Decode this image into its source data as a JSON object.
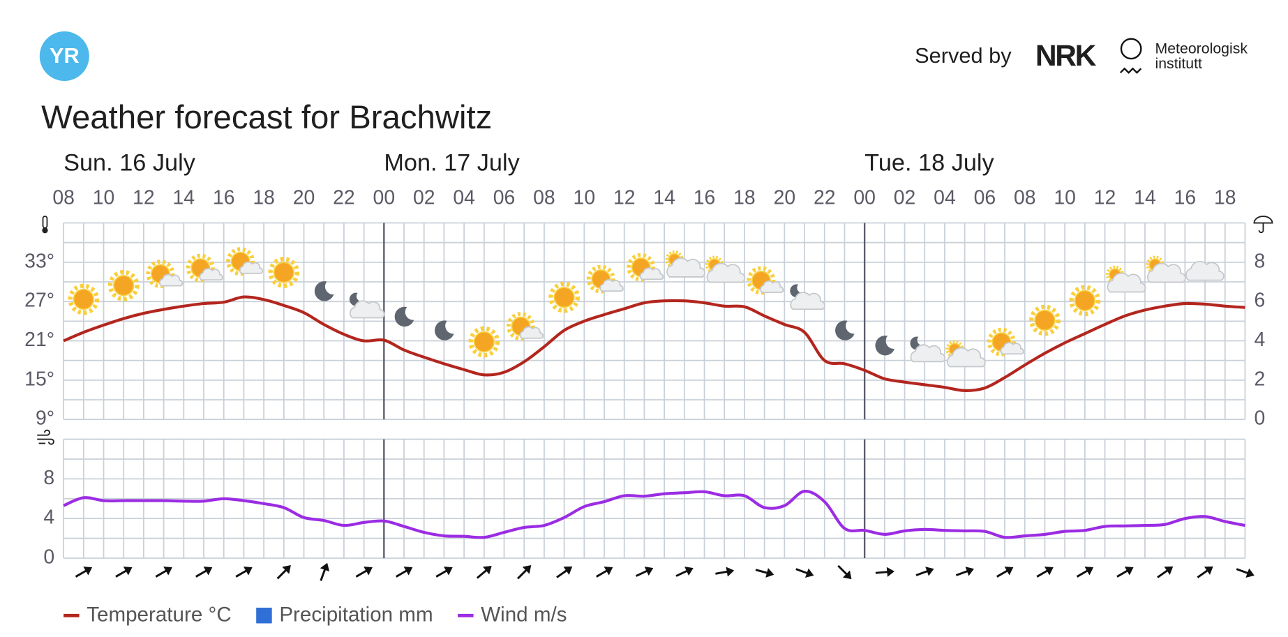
{
  "header": {
    "logo": "YR",
    "served_by": "Served by",
    "nrk": "NRK",
    "met": [
      "Meteorologisk",
      "institutt"
    ]
  },
  "chart_data": {
    "type": "line",
    "title": "Weather forecast for Brachwitz",
    "day_labels": [
      "Sun. 16 July",
      "Mon. 17 July",
      "Tue. 18 July"
    ],
    "categories": [
      "08",
      null,
      "10",
      null,
      "12",
      null,
      "14",
      null,
      "16",
      null,
      "18",
      null,
      "20",
      null,
      "22",
      null,
      "00",
      null,
      "02",
      null,
      "04",
      null,
      "06",
      null,
      "08",
      null,
      "10",
      null,
      "12",
      null,
      "14",
      null,
      "16",
      null,
      "18",
      null,
      "20",
      null,
      "22",
      null,
      "00",
      null,
      "02",
      null,
      "04",
      null,
      "06",
      null,
      "08",
      null,
      "10",
      null,
      "12",
      null,
      "14",
      null,
      "16",
      null,
      "18",
      null
    ],
    "series": [
      {
        "name": "Temperature °C",
        "color": "#b3261e",
        "values": [
          21.0,
          22.3,
          23.4,
          24.4,
          25.2,
          25.8,
          26.3,
          26.7,
          26.9,
          27.7,
          27.3,
          26.4,
          25.3,
          23.5,
          22.0,
          21.0,
          21.1,
          19.6,
          18.5,
          17.5,
          16.6,
          15.8,
          16.2,
          17.8,
          20.1,
          22.6,
          24.0,
          25.0,
          25.9,
          26.8,
          27.1,
          27.1,
          26.8,
          26.3,
          26.2,
          24.8,
          23.5,
          22.3,
          18.0,
          17.5,
          16.5,
          15.2,
          14.7,
          14.3,
          13.9,
          13.4,
          13.8,
          15.4,
          17.3,
          19.1,
          20.7,
          22.1,
          23.5,
          24.8,
          25.7,
          26.3,
          26.7,
          26.6,
          26.3,
          26.1
        ]
      },
      {
        "name": "Precipitation mm",
        "color": "#2f6fd6",
        "axis": "y2",
        "values": [
          0,
          0,
          0,
          0,
          0,
          0,
          0,
          0,
          0,
          0,
          0,
          0,
          0,
          0,
          0,
          0,
          0,
          0,
          0,
          0,
          0,
          0,
          0,
          0,
          0,
          0,
          0,
          0,
          0,
          0,
          0,
          0,
          0,
          0,
          0,
          0,
          0,
          0,
          0,
          0,
          0,
          0,
          0,
          0,
          0,
          0,
          0,
          0,
          0,
          0,
          0,
          0,
          0,
          0,
          0,
          0,
          0,
          0,
          0,
          0
        ]
      },
      {
        "name": "Wind m/s",
        "color": "#9b2ce3",
        "axis": "wind",
        "values": [
          5.3,
          6.1,
          5.8,
          5.8,
          5.8,
          5.8,
          5.75,
          5.75,
          6.0,
          5.8,
          5.5,
          5.1,
          4.1,
          3.8,
          3.3,
          3.6,
          3.75,
          3.2,
          2.6,
          2.25,
          2.2,
          2.1,
          2.6,
          3.1,
          3.3,
          4.1,
          5.2,
          5.7,
          6.3,
          6.25,
          6.5,
          6.6,
          6.7,
          6.3,
          6.3,
          5.1,
          5.3,
          6.75,
          5.7,
          3.0,
          2.8,
          2.4,
          2.75,
          2.9,
          2.8,
          2.75,
          2.7,
          2.1,
          2.25,
          2.4,
          2.7,
          2.8,
          3.2,
          3.25,
          3.3,
          3.4,
          4.0,
          4.2,
          3.7,
          3.3
        ]
      }
    ],
    "wind_direction": [
      null,
      -30,
      null,
      -30,
      null,
      -30,
      null,
      -30,
      null,
      -30,
      null,
      -45,
      null,
      -70,
      null,
      -30,
      null,
      -30,
      null,
      -30,
      null,
      -40,
      null,
      -45,
      null,
      -35,
      null,
      -30,
      null,
      -25,
      null,
      -25,
      null,
      -10,
      null,
      15,
      null,
      20,
      null,
      45,
      null,
      -5,
      null,
      -20,
      null,
      -20,
      null,
      -30,
      null,
      -30,
      null,
      -30,
      null,
      -30,
      null,
      -35,
      null,
      -35,
      null,
      20
    ],
    "ylim": [
      9,
      39
    ],
    "yticks": [
      {
        "value": 9,
        "label": "9°"
      },
      {
        "value": 15,
        "label": "15°"
      },
      {
        "value": 21,
        "label": "21°"
      },
      {
        "value": 27,
        "label": "27°"
      },
      {
        "value": 33,
        "label": "33°"
      }
    ],
    "y2lim": [
      0,
      10
    ],
    "y2ticks": [
      0,
      2,
      4,
      6,
      8
    ],
    "wind_ylim": [
      0,
      12
    ],
    "wind_yticks": [
      0,
      4,
      8
    ],
    "grid": true,
    "legend": "bottom-left"
  }
}
